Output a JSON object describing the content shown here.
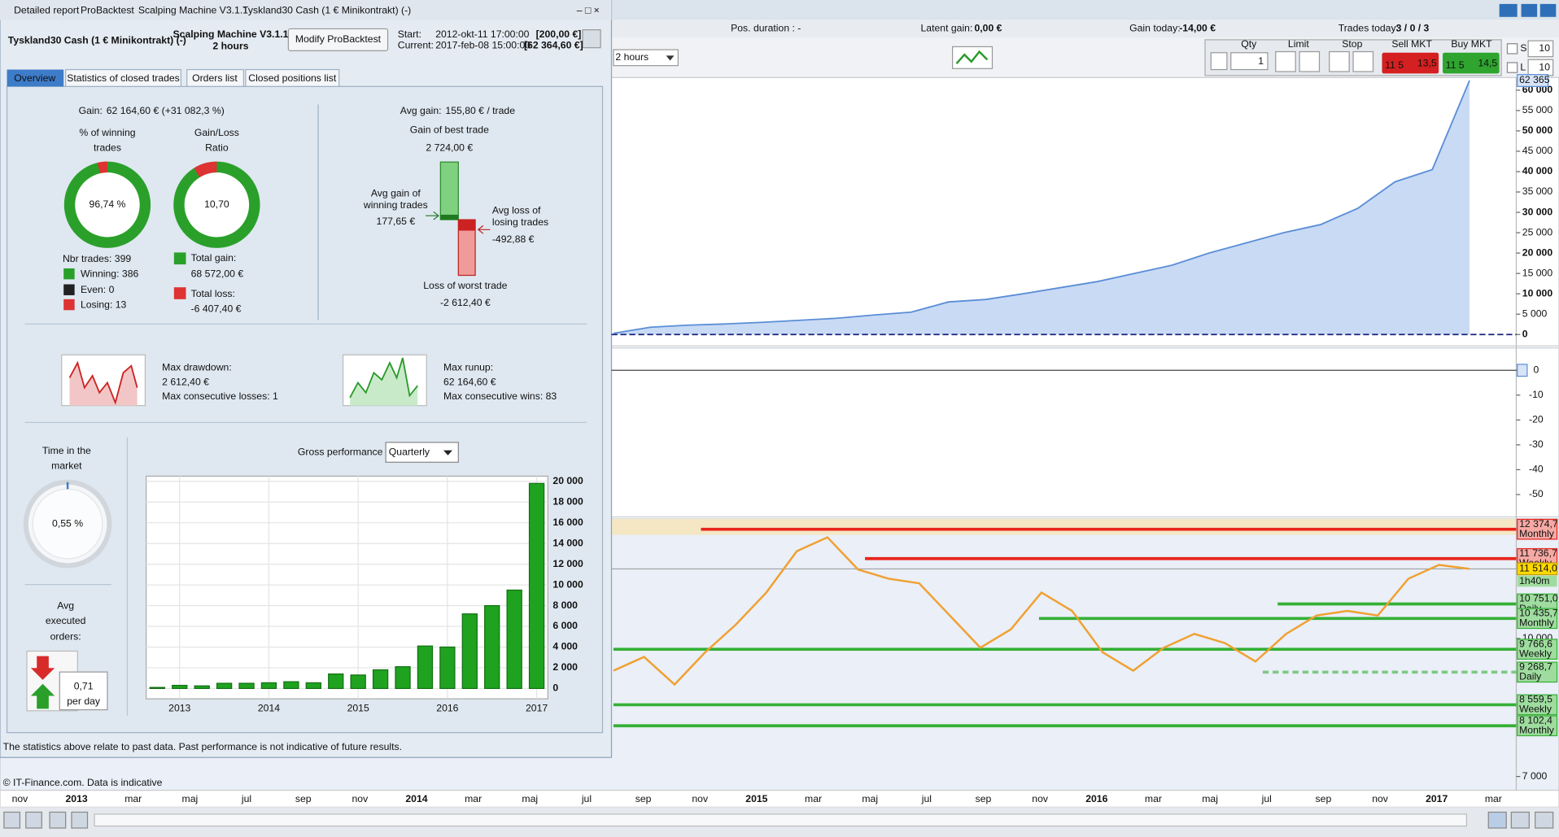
{
  "report": {
    "title_tabs": [
      "Detailed report",
      "ProBacktest",
      "Scalping Machine V3.1.1",
      "Tyskland30 Cash (1 € Minikontrakt) (-)"
    ],
    "instrument": "Tyskland30 Cash (1 € Minikontrakt) (-)",
    "system": "Scalping Machine V3.1.1",
    "timeframe": "2 hours",
    "modify_button": "Modify ProBacktest",
    "start_label": "Start:",
    "start": "2012-okt-11 17:00:00",
    "start_capital": "[200,00 €]",
    "current_label": "Current:",
    "current": "2017-feb-08 15:00:00",
    "current_capital": "[62 364,60 €]",
    "tabs": [
      "Overview",
      "Statistics of closed trades",
      "Orders list",
      "Closed positions list"
    ],
    "overview": {
      "gain_label": "Gain:",
      "gain": "62 164,60 € (+31 082,3 %)",
      "winning_pct_label": [
        "% of winning",
        "trades"
      ],
      "winning_pct": "96,74 %",
      "ratio_label": [
        "Gain/Loss",
        "Ratio"
      ],
      "ratio": "10,70",
      "nbr_trades": "Nbr trades: 399",
      "winning": "Winning: 386",
      "even": "Even: 0",
      "losing": "Losing: 13",
      "total_gain_label": "Total gain:",
      "total_gain": "68 572,00 €",
      "total_loss_label": "Total loss:",
      "total_loss": "-6 407,40 €",
      "avg_gain_label": "Avg gain:",
      "avg_gain": "155,80 € / trade",
      "best_label": "Gain of best trade",
      "best": "2 724,00 €",
      "avg_win_label": [
        "Avg gain of",
        "winning trades"
      ],
      "avg_win": "177,65 €",
      "avg_loss_label": [
        "Avg loss of",
        "losing trades"
      ],
      "avg_loss": "-492,88 €",
      "worst_label": "Loss of worst trade",
      "worst": "-2 612,40 €",
      "drawdown_label": "Max drawdown:",
      "drawdown": "2 612,40 €",
      "consec_losses": "Max consecutive losses: 1",
      "runup_label": "Max runup:",
      "runup": "62 164,60 €",
      "consec_wins": "Max consecutive wins: 83",
      "time_label": [
        "Time in the",
        "market"
      ],
      "time": "0,55 %",
      "orders_label": [
        "Avg",
        "executed",
        "orders:"
      ],
      "orders": "0,71",
      "orders_unit": "per day"
    },
    "disclaimer": "The statistics above relate to past data. Past performance is not indicative of future results.",
    "copyright": "© IT-Finance.com. Data is indicative"
  },
  "platform": {
    "pos_duration": "Pos. duration : -",
    "latent_label": "Latent gain:",
    "latent": "0,00 €",
    "today_label": "Gain today:",
    "today": "-14,00 €",
    "trades_label": "Trades today:",
    "trades": "3 / 0 / 3",
    "timeframe": "2 hours",
    "qty_label": "Qty",
    "qty": "1",
    "limit": "Limit",
    "stop": "Stop",
    "sell": "Sell MKT",
    "buy": "Buy MKT",
    "sell_small": "11 5",
    "sell_price": "13,5",
    "buy_small": "11 5",
    "buy_price": "14,5",
    "s": "S",
    "s_val": "10",
    "l": "L",
    "l_val": "10"
  },
  "time_axis": [
    "nov",
    "2013",
    "mar",
    "maj",
    "jul",
    "sep",
    "nov",
    "2014",
    "mar",
    "maj",
    "jul",
    "sep",
    "nov",
    "2015",
    "mar",
    "maj",
    "jul",
    "sep",
    "nov",
    "2016",
    "mar",
    "maj",
    "jul",
    "sep",
    "nov",
    "2017",
    "mar"
  ],
  "chart_data": [
    {
      "type": "bar",
      "title": "Gross performance",
      "period": "Quarterly",
      "categories": [
        null,
        "2013",
        null,
        null,
        null,
        "2014",
        null,
        null,
        null,
        "2015",
        null,
        null,
        null,
        "2016",
        null,
        null,
        null,
        "2017"
      ],
      "values": [
        100,
        300,
        250,
        500,
        500,
        550,
        650,
        550,
        1400,
        1300,
        1800,
        2100,
        4100,
        4000,
        7200,
        8000,
        9500,
        19800
      ],
      "color": "#1fa21f",
      "ylim": [
        -1000,
        20500
      ],
      "yticks": [
        0,
        {
          "value": 2000,
          "label": "2 000"
        },
        {
          "value": 4000,
          "label": "4 000"
        },
        {
          "value": 6000,
          "label": "6 000"
        },
        {
          "value": 8000,
          "label": "8 000"
        },
        {
          "value": 10000,
          "label": "10 000"
        },
        {
          "value": 12000,
          "label": "12 000"
        },
        {
          "value": 14000,
          "label": "14 000"
        },
        {
          "value": 16000,
          "label": "16 000"
        },
        {
          "value": 18000,
          "label": "18 000"
        },
        {
          "value": 20000,
          "label": "20 000"
        }
      ],
      "grid": true
    },
    {
      "type": "area",
      "values": [
        300,
        1800,
        2300,
        2600,
        3000,
        3500,
        4000,
        4800,
        5500,
        8000,
        8600,
        10000,
        11500,
        13000,
        15000,
        17000,
        20000,
        22500,
        25000,
        27000,
        31000,
        37500,
        40500,
        62365
      ],
      "value_labels": [
        null,
        null,
        null,
        null,
        null,
        null,
        null,
        null,
        null,
        null,
        null,
        null,
        null,
        null,
        null,
        null,
        null,
        null,
        null,
        null,
        null,
        null,
        null,
        "62 365"
      ],
      "color": "#5b8ed6",
      "ylim": [
        -2800,
        63100
      ],
      "yticks": [
        0,
        {
          "value": 5000,
          "label": "5 000"
        },
        {
          "value": 10000,
          "label": "10 000"
        },
        {
          "value": 15000,
          "label": "15 000"
        },
        {
          "value": 20000,
          "label": "20 000"
        },
        {
          "value": 25000,
          "label": "25 000"
        },
        {
          "value": 30000,
          "label": "30 000"
        },
        {
          "value": 35000,
          "label": "35 000"
        },
        {
          "value": 40000,
          "label": "40 000"
        },
        {
          "value": 45000,
          "label": "45 000"
        },
        {
          "value": 50000,
          "label": "50 000"
        },
        {
          "value": 55000,
          "label": "55 000"
        },
        {
          "value": 60000,
          "label": "60 000"
        }
      ]
    },
    {
      "type": "axis",
      "ylim": [
        -59,
        9
      ],
      "yticks": [
        0,
        -10,
        -20,
        -30,
        -40,
        -50
      ]
    },
    {
      "type": "line",
      "values": [
        9300,
        9600,
        9000,
        9700,
        10300,
        11000,
        11900,
        12200,
        11500,
        11300,
        11200,
        10500,
        9800,
        10200,
        11000,
        10600,
        9700,
        9300,
        9800,
        10100,
        9900,
        9500,
        10100,
        10500,
        10600,
        10500,
        11300,
        11600,
        11514
      ],
      "color": "#f0a030",
      "ylim": [
        6700,
        12600
      ],
      "yticks": [
        {
          "value": 10000,
          "label": "10 000"
        },
        {
          "value": 7000,
          "label": "7 000"
        }
      ],
      "current": {
        "value": 11514,
        "label": "11 514,0",
        "timer": "1h40m"
      },
      "levels": [
        {
          "value": 12374.7,
          "label": "12 374,7",
          "period": "Monthly",
          "color": "#e8241c"
        },
        {
          "value": 11736.7,
          "label": "11 736,7",
          "period": "Weekly",
          "color": "#e8241c"
        },
        {
          "value": 10751,
          "label": "10 751,0",
          "period": "Daily",
          "color": "#35b035"
        },
        {
          "value": 10435.7,
          "label": "10 435,7",
          "period": "Monthly",
          "color": "#35b035"
        },
        {
          "value": 9766.6,
          "label": "9 766,6",
          "period": "Weekly",
          "color": "#35b035"
        },
        {
          "value": 9268.7,
          "label": "9 268,7",
          "period": "Daily",
          "color": "#35b035",
          "dashed": true
        },
        {
          "value": 8559.5,
          "label": "8 559,5",
          "period": "Weekly",
          "color": "#35b035"
        },
        {
          "value": 8102.4,
          "label": "8 102,4",
          "period": "Monthly",
          "color": "#35b035"
        }
      ]
    }
  ]
}
